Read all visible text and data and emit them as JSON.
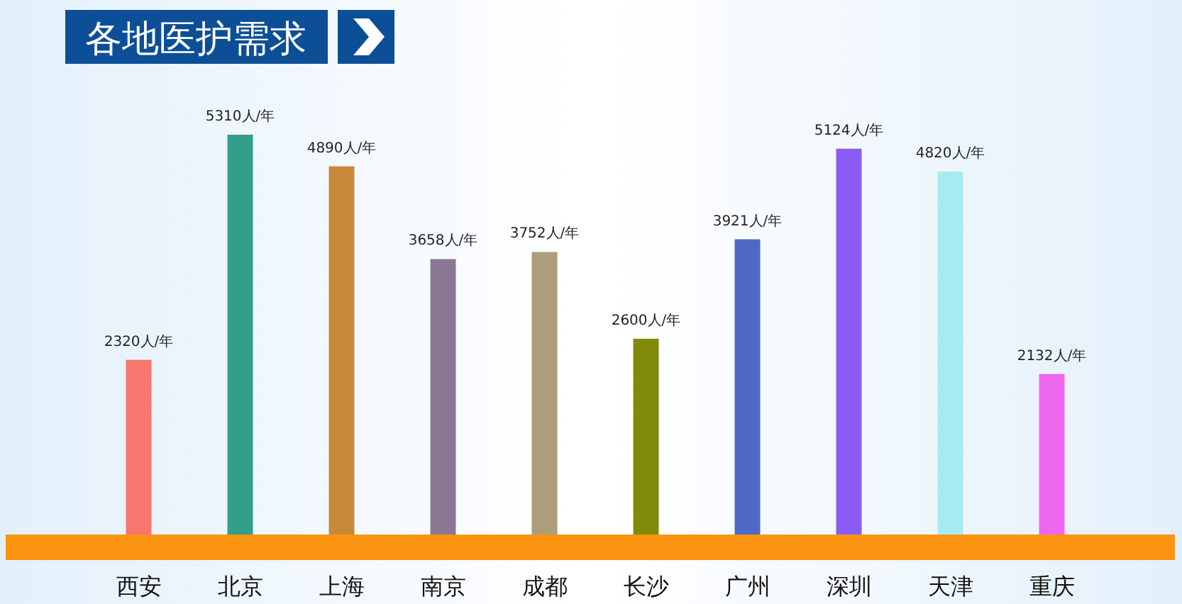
{
  "chart_data": {
    "type": "bar",
    "title": "各地医护需求",
    "categories": [
      "西安",
      "北京",
      "上海",
      "南京",
      "成都",
      "长沙",
      "广州",
      "深圳",
      "天津",
      "重庆"
    ],
    "values": [
      2320,
      5310,
      4890,
      3658,
      3752,
      2600,
      3921,
      5124,
      4820,
      2132
    ],
    "colors": [
      "#f8766d",
      "#339e8a",
      "#c8883a",
      "#8b7793",
      "#ac9e7a",
      "#808b0a",
      "#4e68c6",
      "#8b5cf4",
      "#a6ebf2",
      "#ef67ef"
    ],
    "value_labels": [
      "2320人/年",
      "5310人/年",
      "4890人/年",
      "3658人/年",
      "3752人/年",
      "2600人/年",
      "3921人/年",
      "5124人/年",
      "4820人/年",
      "2132人/年"
    ]
  }
}
